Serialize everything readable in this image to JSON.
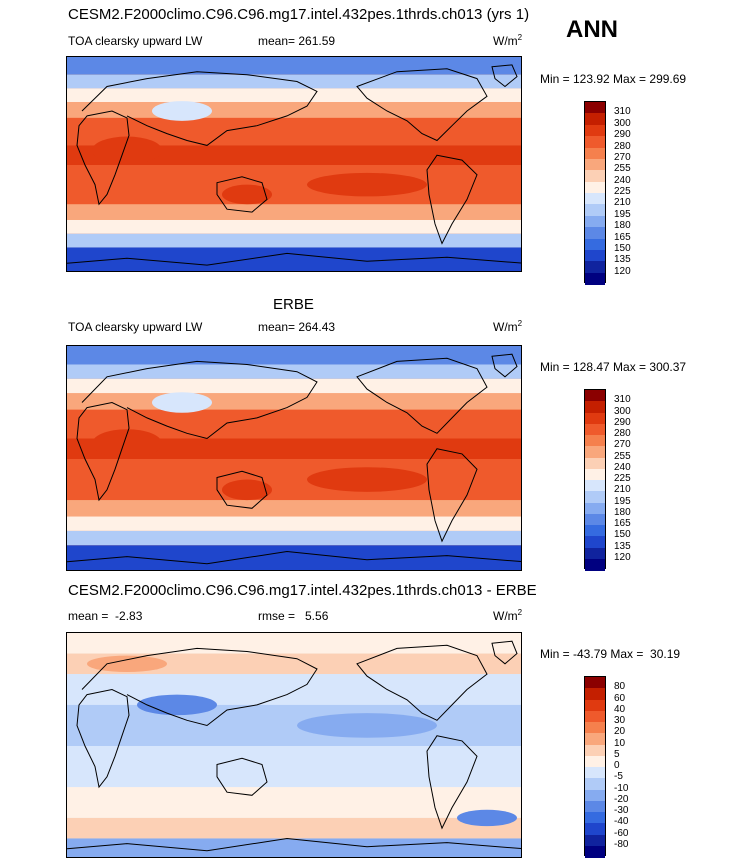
{
  "season": "ANN",
  "panels": [
    {
      "title": "CESM2.F2000climo.C96.C96.mg17.intel.432pes.1thrds.ch013 (yrs 1)",
      "variable": "TOA clearsky upward LW",
      "stat": "mean= 261.59",
      "units": "W/m",
      "units_exp": "2",
      "minmax": "Min = 123.92 Max = 299.69",
      "map_mean": 261.59
    },
    {
      "title": "ERBE",
      "variable": "TOA clearsky upward LW",
      "stat": "mean= 264.43",
      "units": "W/m",
      "units_exp": "2",
      "minmax": "Min = 128.47 Max = 300.37",
      "map_mean": 264.43
    },
    {
      "title": "CESM2.F2000climo.C96.C96.mg17.intel.432pes.1thrds.ch013 - ERBE",
      "stat": "mean =  -2.83",
      "stat2": "rmse =   5.56",
      "units": "W/m",
      "units_exp": "2",
      "minmax": "Min = -43.79 Max =  30.19",
      "map_mean": -2.83
    }
  ],
  "colorbar_abs": {
    "levels": [
      "310",
      "300",
      "290",
      "280",
      "270",
      "255",
      "240",
      "225",
      "210",
      "195",
      "180",
      "165",
      "150",
      "135",
      "120"
    ],
    "colors": [
      "#8b0000",
      "#c41f00",
      "#e03a10",
      "#ef5a2c",
      "#f5804d",
      "#f9a77c",
      "#fcd0b5",
      "#fff1e6",
      "#d7e6fc",
      "#b0cbf7",
      "#86abf0",
      "#5c88e6",
      "#356be0",
      "#1f46cc",
      "#10239e",
      "#000080"
    ]
  },
  "colorbar_diff": {
    "levels": [
      "80",
      "60",
      "40",
      "30",
      "20",
      "10",
      "5",
      "0",
      "-5",
      "-10",
      "-20",
      "-30",
      "-40",
      "-60",
      "-80"
    ],
    "colors": [
      "#8b0000",
      "#c41f00",
      "#e03a10",
      "#ef5a2c",
      "#f5804d",
      "#f9a77c",
      "#fcd0b5",
      "#fff1e6",
      "#d7e6fc",
      "#b0cbf7",
      "#86abf0",
      "#5c88e6",
      "#356be0",
      "#1f46cc",
      "#10239e",
      "#000080"
    ]
  }
}
